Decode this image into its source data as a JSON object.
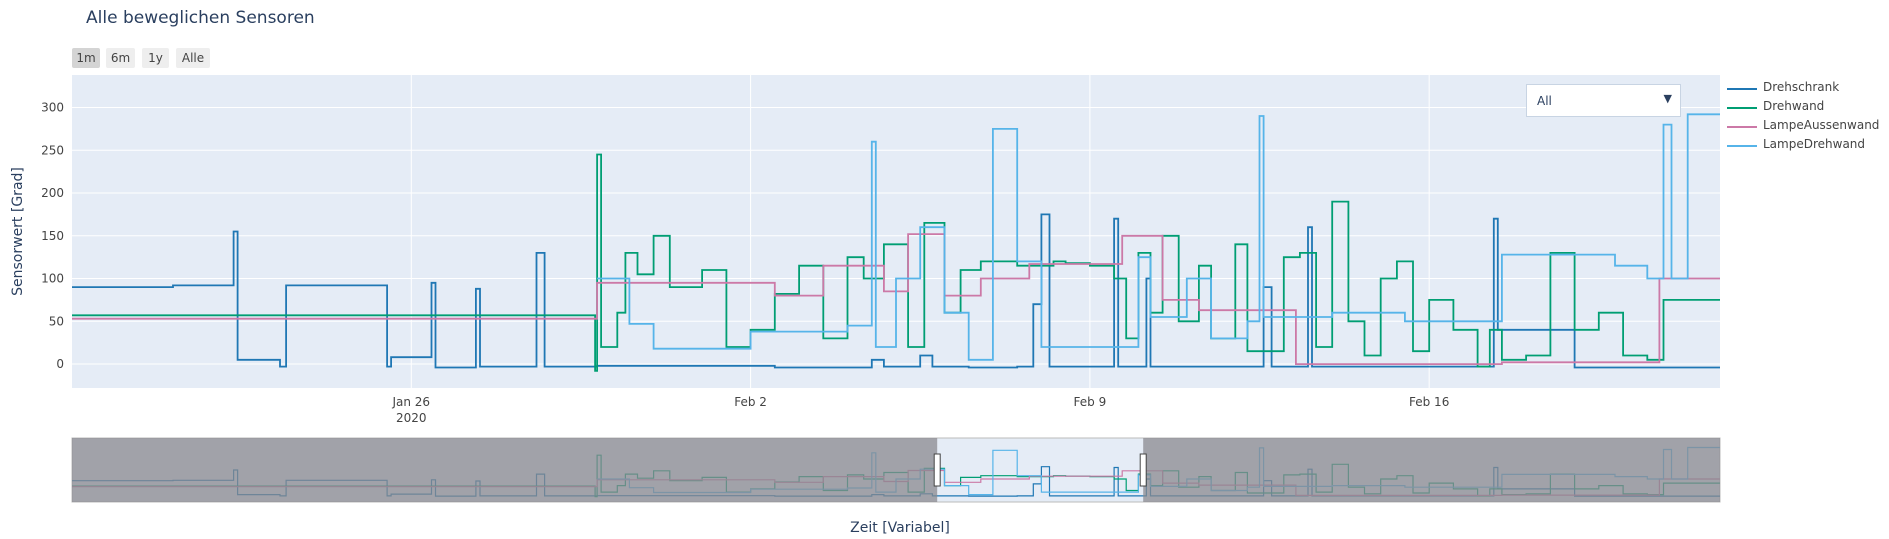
{
  "title": "Alle beweglichen Sensoren",
  "range_buttons": [
    {
      "label": "1m",
      "active": true
    },
    {
      "label": "6m",
      "active": false
    },
    {
      "label": "1y",
      "active": false
    },
    {
      "label": "Alle",
      "active": false
    }
  ],
  "dropdown": {
    "value": "All"
  },
  "colors": {
    "plot_bg": "#e5ecf6",
    "grid": "#ffffff",
    "slider_mask": "#8a8a8f",
    "axis_text": "#444444"
  },
  "chart_data": {
    "type": "line",
    "title": "Alle beweglichen Sensoren",
    "xlabel": "Zeit [Variabel]",
    "ylabel": "Sensorwert [Grad]",
    "x_start": "2020-01-19",
    "x_end": "2020-02-22",
    "ylim": [
      -28,
      338
    ],
    "yticks": [
      0,
      50,
      100,
      150,
      200,
      250,
      300
    ],
    "xticks": [
      {
        "date": "2020-01-26",
        "label": "Jan 26",
        "sublabel": "2020"
      },
      {
        "date": "2020-02-02",
        "label": "Feb 2",
        "sublabel": ""
      },
      {
        "date": "2020-02-09",
        "label": "Feb 9",
        "sublabel": ""
      },
      {
        "date": "2020-02-16",
        "label": "Feb 16",
        "sublabel": ""
      }
    ],
    "legend_position": "right",
    "series": [
      {
        "name": "Drehschrank",
        "color": "#1f77b4",
        "points": [
          [
            "2020-01-19 00:00",
            90
          ],
          [
            "2020-01-21 01:00",
            90
          ],
          [
            "2020-01-21 02:00",
            92
          ],
          [
            "2020-01-22 07:00",
            92
          ],
          [
            "2020-01-22 08:00",
            155
          ],
          [
            "2020-01-22 10:00",
            5
          ],
          [
            "2020-01-23 06:00",
            5
          ],
          [
            "2020-01-23 07:00",
            -3
          ],
          [
            "2020-01-23 09:00",
            -3
          ],
          [
            "2020-01-23 10:00",
            92
          ],
          [
            "2020-01-25 11:00",
            92
          ],
          [
            "2020-01-25 12:00",
            -3
          ],
          [
            "2020-01-25 14:00",
            8
          ],
          [
            "2020-01-26 08:00",
            8
          ],
          [
            "2020-01-26 10:00",
            95
          ],
          [
            "2020-01-26 12:00",
            -4
          ],
          [
            "2020-01-27 06:00",
            -4
          ],
          [
            "2020-01-27 08:00",
            88
          ],
          [
            "2020-01-27 10:00",
            -3
          ],
          [
            "2020-01-28 12:00",
            -3
          ],
          [
            "2020-01-28 14:00",
            130
          ],
          [
            "2020-01-28 18:00",
            -3
          ],
          [
            "2020-01-29 20:00",
            -2
          ],
          [
            "2020-01-31 12:00",
            -2
          ],
          [
            "2020-02-02 12:00",
            -4
          ],
          [
            "2020-02-03 12:00",
            -4
          ],
          [
            "2020-02-04 12:00",
            5
          ],
          [
            "2020-02-04 18:00",
            -3
          ],
          [
            "2020-02-05 12:00",
            10
          ],
          [
            "2020-02-05 18:00",
            -3
          ],
          [
            "2020-02-06 12:00",
            -4
          ],
          [
            "2020-02-07 12:00",
            -3
          ],
          [
            "2020-02-07 20:00",
            70
          ],
          [
            "2020-02-08 00:00",
            175
          ],
          [
            "2020-02-08 04:00",
            -3
          ],
          [
            "2020-02-08 12:00",
            -3
          ],
          [
            "2020-02-09 06:00",
            -3
          ],
          [
            "2020-02-09 12:00",
            170
          ],
          [
            "2020-02-09 14:00",
            -3
          ],
          [
            "2020-02-10 00:00",
            -3
          ],
          [
            "2020-02-10 04:00",
            100
          ],
          [
            "2020-02-10 06:00",
            -3
          ],
          [
            "2020-02-11 00:00",
            -3
          ],
          [
            "2020-02-11 12:00",
            -3
          ],
          [
            "2020-02-12 14:00",
            90
          ],
          [
            "2020-02-12 18:00",
            -3
          ],
          [
            "2020-02-13 12:00",
            160
          ],
          [
            "2020-02-13 14:00",
            -3
          ],
          [
            "2020-02-14 12:00",
            -3
          ],
          [
            "2020-02-15 12:00",
            -3
          ],
          [
            "2020-02-16 06:00",
            -3
          ],
          [
            "2020-02-17 00:00",
            -3
          ],
          [
            "2020-02-17 08:00",
            170
          ],
          [
            "2020-02-17 10:00",
            40
          ],
          [
            "2020-02-18 12:00",
            40
          ],
          [
            "2020-02-19 00:00",
            -4
          ],
          [
            "2020-02-21 00:00",
            -4
          ],
          [
            "2020-02-22 00:00",
            -4
          ]
        ]
      },
      {
        "name": "Drehwand",
        "color": "#009e73",
        "points": [
          [
            "2020-01-19 00:00",
            57
          ],
          [
            "2020-01-29 18:00",
            57
          ],
          [
            "2020-01-29 19:00",
            -8
          ],
          [
            "2020-01-29 20:00",
            245
          ],
          [
            "2020-01-29 22:00",
            20
          ],
          [
            "2020-01-30 06:00",
            60
          ],
          [
            "2020-01-30 10:00",
            130
          ],
          [
            "2020-01-30 16:00",
            105
          ],
          [
            "2020-01-31 00:00",
            150
          ],
          [
            "2020-01-31 08:00",
            90
          ],
          [
            "2020-02-01 00:00",
            110
          ],
          [
            "2020-02-01 12:00",
            20
          ],
          [
            "2020-02-02 00:00",
            40
          ],
          [
            "2020-02-02 12:00",
            82
          ],
          [
            "2020-02-03 00:00",
            115
          ],
          [
            "2020-02-03 12:00",
            30
          ],
          [
            "2020-02-04 00:00",
            125
          ],
          [
            "2020-02-04 08:00",
            100
          ],
          [
            "2020-02-04 18:00",
            140
          ],
          [
            "2020-02-05 06:00",
            20
          ],
          [
            "2020-02-05 14:00",
            165
          ],
          [
            "2020-02-06 00:00",
            60
          ],
          [
            "2020-02-06 08:00",
            110
          ],
          [
            "2020-02-06 18:00",
            120
          ],
          [
            "2020-02-07 12:00",
            115
          ],
          [
            "2020-02-08 06:00",
            120
          ],
          [
            "2020-02-08 12:00",
            118
          ],
          [
            "2020-02-09 00:00",
            115
          ],
          [
            "2020-02-09 12:00",
            100
          ],
          [
            "2020-02-09 18:00",
            30
          ],
          [
            "2020-02-10 00:00",
            130
          ],
          [
            "2020-02-10 06:00",
            60
          ],
          [
            "2020-02-10 12:00",
            150
          ],
          [
            "2020-02-10 20:00",
            50
          ],
          [
            "2020-02-11 06:00",
            115
          ],
          [
            "2020-02-11 12:00",
            30
          ],
          [
            "2020-02-12 00:00",
            140
          ],
          [
            "2020-02-12 06:00",
            15
          ],
          [
            "2020-02-12 18:00",
            15
          ],
          [
            "2020-02-13 00:00",
            125
          ],
          [
            "2020-02-13 08:00",
            130
          ],
          [
            "2020-02-13 16:00",
            20
          ],
          [
            "2020-02-14 00:00",
            190
          ],
          [
            "2020-02-14 08:00",
            50
          ],
          [
            "2020-02-14 16:00",
            10
          ],
          [
            "2020-02-15 00:00",
            100
          ],
          [
            "2020-02-15 08:00",
            120
          ],
          [
            "2020-02-15 16:00",
            15
          ],
          [
            "2020-02-16 00:00",
            75
          ],
          [
            "2020-02-16 12:00",
            40
          ],
          [
            "2020-02-17 00:00",
            -3
          ],
          [
            "2020-02-17 06:00",
            40
          ],
          [
            "2020-02-17 12:00",
            5
          ],
          [
            "2020-02-18 00:00",
            10
          ],
          [
            "2020-02-18 12:00",
            130
          ],
          [
            "2020-02-19 00:00",
            40
          ],
          [
            "2020-02-19 12:00",
            60
          ],
          [
            "2020-02-20 00:00",
            10
          ],
          [
            "2020-02-20 12:00",
            5
          ],
          [
            "2020-02-20 20:00",
            75
          ],
          [
            "2020-02-22 00:00",
            75
          ]
        ]
      },
      {
        "name": "LampeAussenwand",
        "color": "#cc79a7",
        "points": [
          [
            "2020-01-19 00:00",
            53
          ],
          [
            "2020-01-29 18:00",
            53
          ],
          [
            "2020-01-29 20:00",
            95
          ],
          [
            "2020-02-02 06:00",
            95
          ],
          [
            "2020-02-02 12:00",
            80
          ],
          [
            "2020-02-03 12:00",
            115
          ],
          [
            "2020-02-04 12:00",
            115
          ],
          [
            "2020-02-04 18:00",
            85
          ],
          [
            "2020-02-05 06:00",
            152
          ],
          [
            "2020-02-05 18:00",
            152
          ],
          [
            "2020-02-06 00:00",
            80
          ],
          [
            "2020-02-06 12:00",
            80
          ],
          [
            "2020-02-06 18:00",
            100
          ],
          [
            "2020-02-07 12:00",
            100
          ],
          [
            "2020-02-07 18:00",
            117
          ],
          [
            "2020-02-09 12:00",
            117
          ],
          [
            "2020-02-09 16:00",
            150
          ],
          [
            "2020-02-10 06:00",
            150
          ],
          [
            "2020-02-10 12:00",
            75
          ],
          [
            "2020-02-11 00:00",
            75
          ],
          [
            "2020-02-11 06:00",
            63
          ],
          [
            "2020-02-13 00:00",
            63
          ],
          [
            "2020-02-13 06:00",
            0
          ],
          [
            "2020-02-15 00:00",
            0
          ],
          [
            "2020-02-16 00:00",
            0
          ],
          [
            "2020-02-17 12:00",
            2
          ],
          [
            "2020-02-20 12:00",
            2
          ],
          [
            "2020-02-20 18:00",
            100
          ],
          [
            "2020-02-22 00:00",
            100
          ]
        ]
      },
      {
        "name": "LampeDrehwand",
        "color": "#56b4e9",
        "points": [
          [
            "2020-01-29 20:00",
            100
          ],
          [
            "2020-01-30 12:00",
            47
          ],
          [
            "2020-01-31 00:00",
            18
          ],
          [
            "2020-02-01 12:00",
            18
          ],
          [
            "2020-02-02 00:00",
            38
          ],
          [
            "2020-02-03 12:00",
            38
          ],
          [
            "2020-02-04 00:00",
            45
          ],
          [
            "2020-02-04 12:00",
            260
          ],
          [
            "2020-02-04 14:00",
            20
          ],
          [
            "2020-02-05 00:00",
            100
          ],
          [
            "2020-02-05 12:00",
            160
          ],
          [
            "2020-02-06 00:00",
            60
          ],
          [
            "2020-02-06 12:00",
            5
          ],
          [
            "2020-02-07 00:00",
            275
          ],
          [
            "2020-02-07 12:00",
            120
          ],
          [
            "2020-02-08 00:00",
            20
          ],
          [
            "2020-02-09 12:00",
            20
          ],
          [
            "2020-02-10 00:00",
            125
          ],
          [
            "2020-02-10 06:00",
            55
          ],
          [
            "2020-02-11 00:00",
            100
          ],
          [
            "2020-02-11 12:00",
            30
          ],
          [
            "2020-02-12 06:00",
            50
          ],
          [
            "2020-02-12 12:00",
            290
          ],
          [
            "2020-02-12 14:00",
            55
          ],
          [
            "2020-02-14 00:00",
            60
          ],
          [
            "2020-02-15 00:00",
            60
          ],
          [
            "2020-02-15 12:00",
            50
          ],
          [
            "2020-02-17 00:00",
            50
          ],
          [
            "2020-02-17 12:00",
            128
          ],
          [
            "2020-02-18 00:00",
            128
          ],
          [
            "2020-02-19 12:00",
            128
          ],
          [
            "2020-02-19 20:00",
            115
          ],
          [
            "2020-02-20 12:00",
            100
          ],
          [
            "2020-02-20 20:00",
            280
          ],
          [
            "2020-02-21 00:00",
            100
          ],
          [
            "2020-02-21 08:00",
            292
          ],
          [
            "2020-02-22 00:00",
            292
          ]
        ]
      }
    ]
  },
  "range_slider": {
    "window": [
      "2020-01-19",
      "2020-02-22"
    ]
  }
}
